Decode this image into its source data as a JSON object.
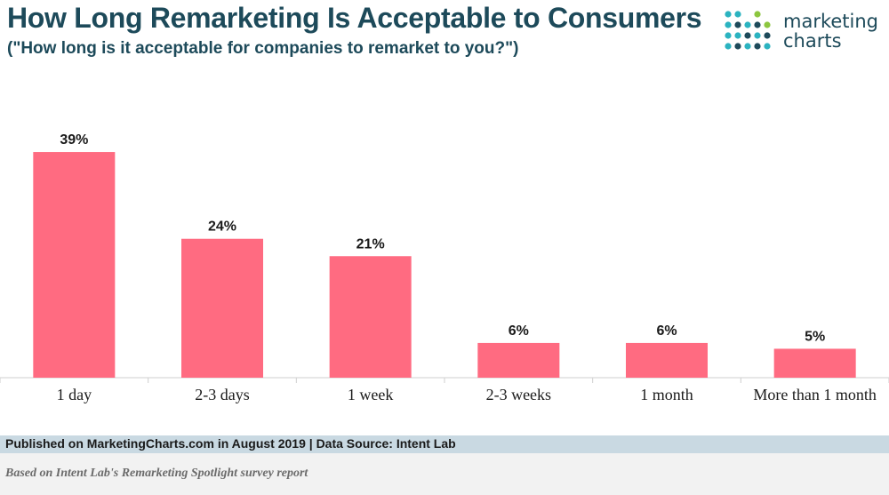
{
  "header": {
    "title": "How Long Remarketing Is Acceptable to Consumers",
    "subtitle": "(\"How long is it acceptable for companies to remarket to you?\")"
  },
  "logo": {
    "line1": "marketing",
    "line2": "charts",
    "dot_colors": [
      "#2bb3c0",
      "#1d4a5a",
      "#8cc63f"
    ]
  },
  "chart_data": {
    "type": "bar",
    "categories": [
      "1 day",
      "2-3 days",
      "1 week",
      "2-3 weeks",
      "1 month",
      "More than 1 month"
    ],
    "values": [
      39,
      24,
      21,
      6,
      6,
      5
    ],
    "value_labels": [
      "39%",
      "24%",
      "21%",
      "6%",
      "6%",
      "5%"
    ],
    "title": "How Long Remarketing Is Acceptable to Consumers",
    "xlabel": "",
    "ylabel": "",
    "ylim": [
      0,
      43
    ],
    "grid": false,
    "bar_color": "#ff6b81"
  },
  "footer": {
    "published": "Published on MarketingCharts.com in August 2019 | Data Source: Intent Lab",
    "note": "Based on Intent Lab's Remarketing Spotlight survey report"
  }
}
